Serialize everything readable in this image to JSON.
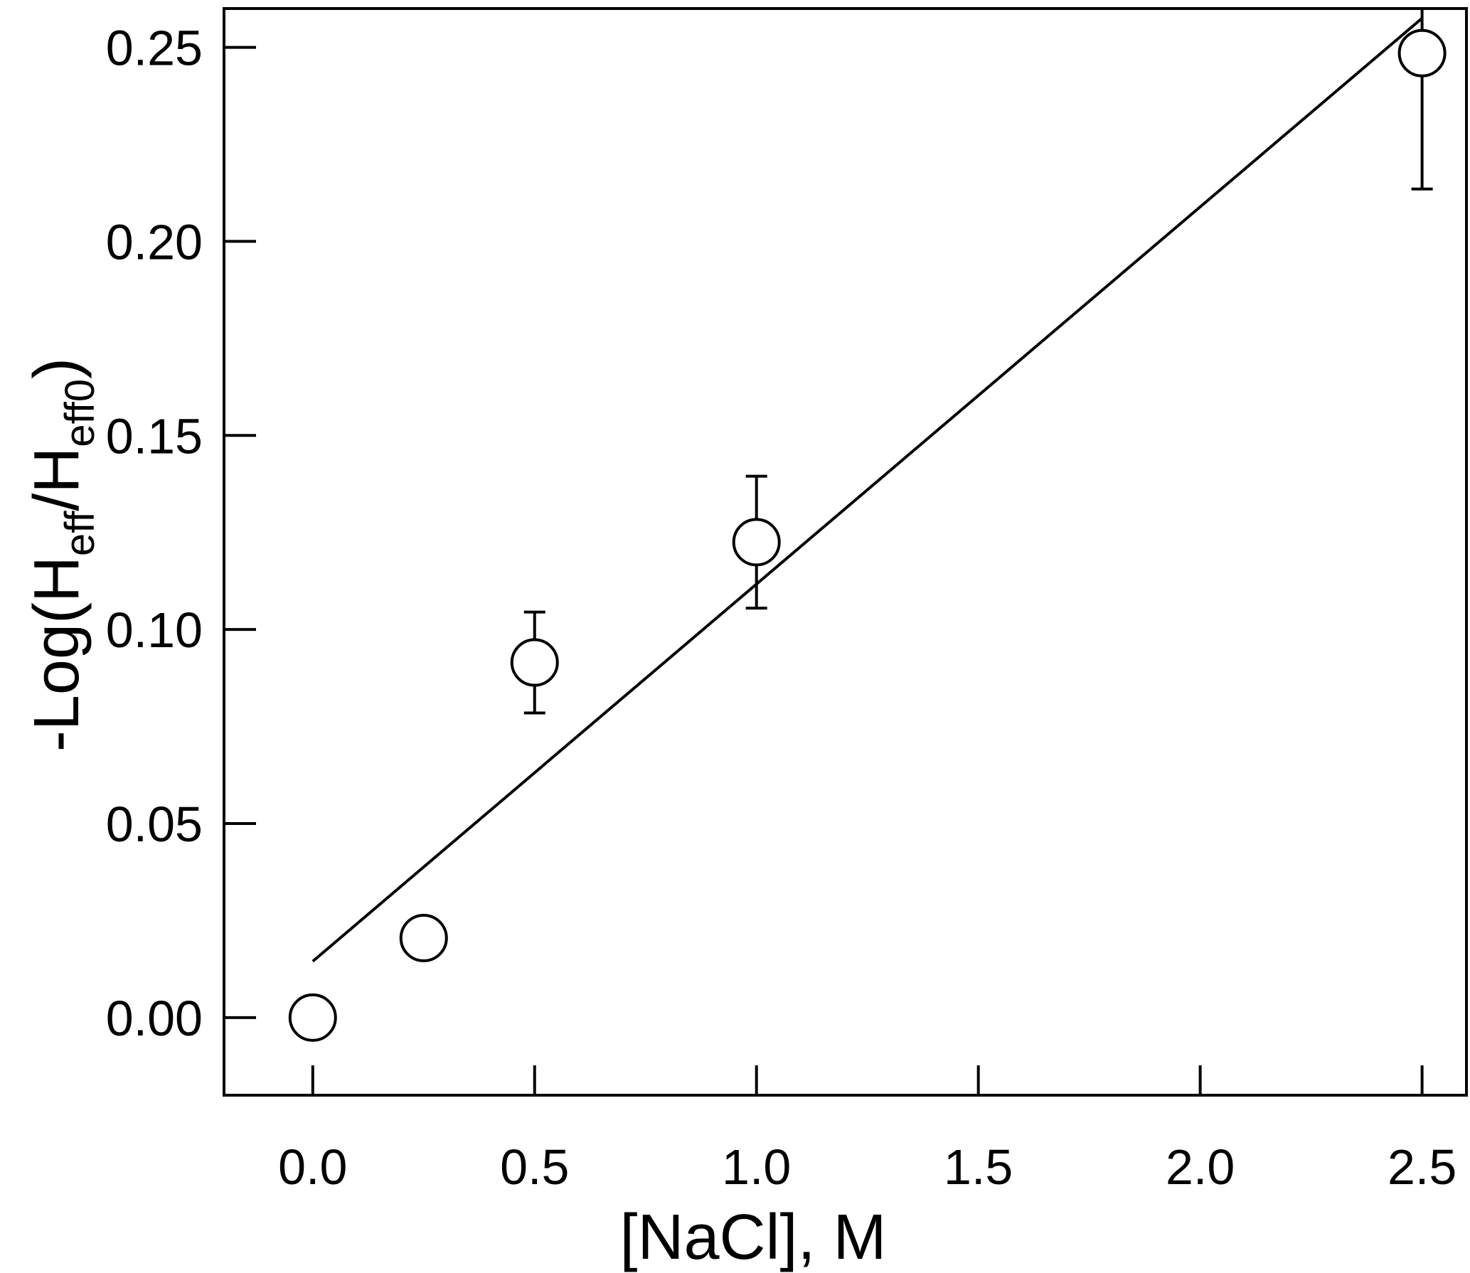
{
  "chart_data": {
    "type": "scatter",
    "xlabel": "[NaCl], M",
    "ylabel": {
      "prefix": "-Log(H",
      "sub1": "eff",
      "mid": "/H",
      "sub2": "eff0",
      "suffix": ")"
    },
    "xlim": [
      -0.2,
      2.6
    ],
    "ylim": [
      -0.02,
      0.26
    ],
    "xticks": [
      "0.0",
      "0.5",
      "1.0",
      "1.5",
      "2.0",
      "2.5"
    ],
    "yticks": [
      "0.00",
      "0.05",
      "0.10",
      "0.15",
      "0.20",
      "0.25"
    ],
    "grid": false,
    "legend": "none",
    "series": [
      {
        "points": [
          {
            "x": 0.0,
            "y": 0.0,
            "err": null
          },
          {
            "x": 0.25,
            "y": 0.0205,
            "err": null
          },
          {
            "x": 0.5,
            "y": 0.0915,
            "err": 0.013
          },
          {
            "x": 1.0,
            "y": 0.1225,
            "err": 0.017
          },
          {
            "x": 2.5,
            "y": 0.2485,
            "err": 0.035
          }
        ]
      }
    ],
    "fit_line": {
      "x": [
        0.0,
        2.5
      ],
      "y": [
        0.0145,
        0.2575
      ]
    },
    "colors": {
      "axis": "#000000",
      "marker_fill": "#ffffff",
      "line": "#000000"
    }
  }
}
